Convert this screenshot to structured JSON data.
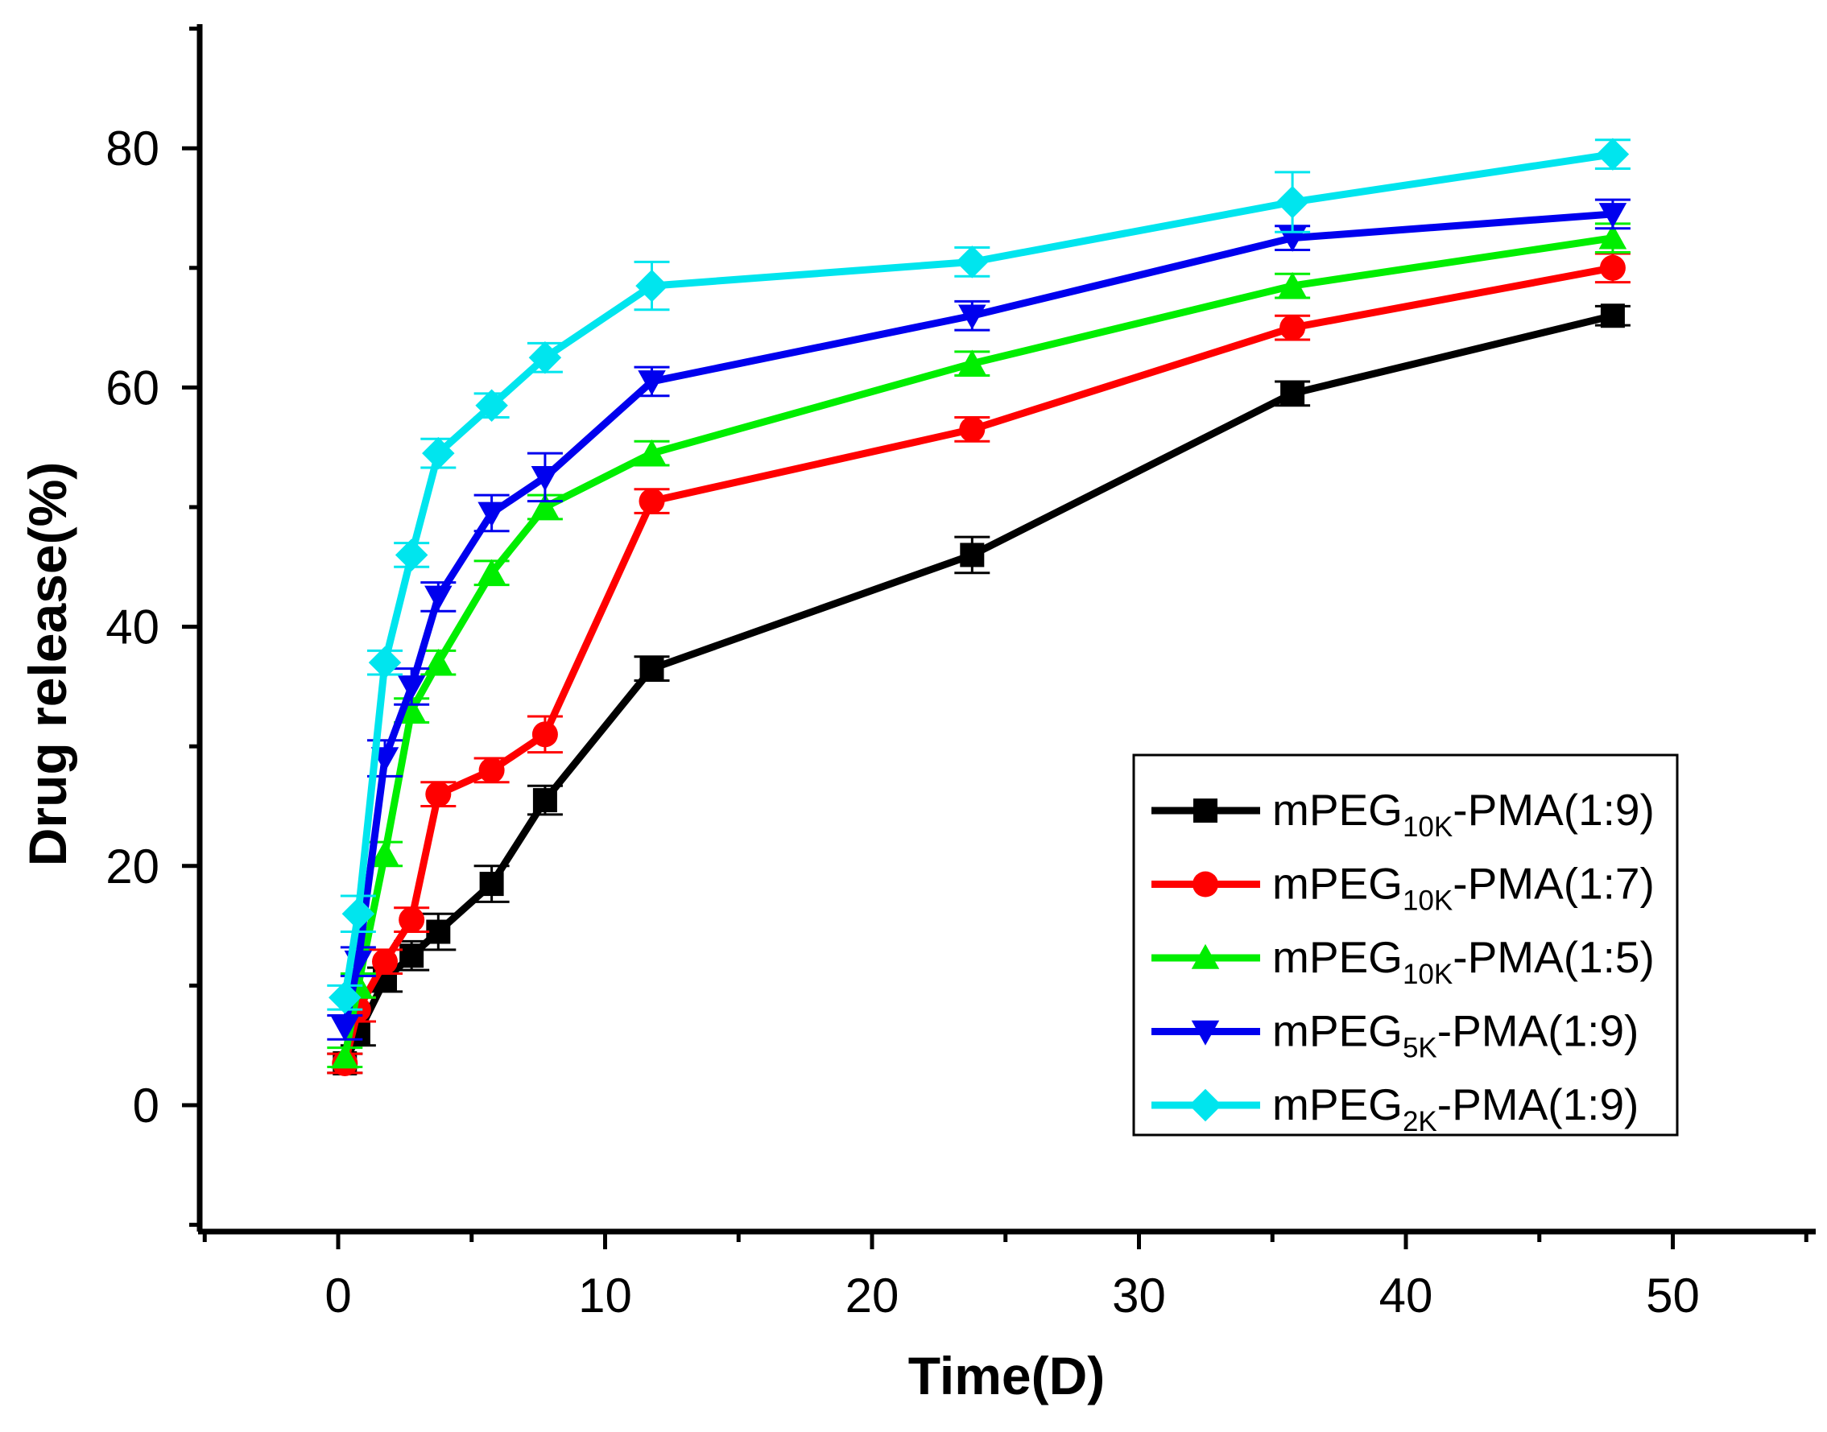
{
  "chart_data": {
    "type": "line",
    "title": "",
    "xlabel": "Time(D)",
    "ylabel": "Drug release(%)",
    "xlim": [
      -5,
      55
    ],
    "ylim": [
      -10,
      90
    ],
    "xticks": [
      "0",
      "10",
      "20",
      "30",
      "40",
      "50"
    ],
    "yticks": [
      "0",
      "20",
      "40",
      "60",
      "80"
    ],
    "grid": false,
    "legend_position": "lower-right",
    "x": [
      0.25,
      0.75,
      1.75,
      2.75,
      3.75,
      5.75,
      7.75,
      11.75,
      23.75,
      35.75,
      47.75
    ],
    "series": [
      {
        "name": "mPEG10K-PMA(1:9)",
        "legend_parts": {
          "prefix": "mPEG",
          "sub": "10K",
          "suffix": "-PMA(1:9)"
        },
        "color": "#000000",
        "marker": "square",
        "values": [
          3.5,
          6.0,
          10.5,
          12.5,
          14.5,
          18.5,
          25.5,
          36.5,
          46.0,
          59.5,
          66.0
        ],
        "errors": [
          0.8,
          1.0,
          1.0,
          1.2,
          1.5,
          1.5,
          1.2,
          1.0,
          1.5,
          1.0,
          0.8
        ]
      },
      {
        "name": "mPEG10K-PMA(1:7)",
        "legend_parts": {
          "prefix": "mPEG",
          "sub": "10K",
          "suffix": "-PMA(1:7)"
        },
        "color": "#ff0000",
        "marker": "circle",
        "values": [
          3.5,
          8.0,
          12.0,
          15.5,
          26.0,
          28.0,
          31.0,
          50.5,
          56.5,
          65.0,
          70.0
        ],
        "errors": [
          0.8,
          1.0,
          1.0,
          1.0,
          1.0,
          1.0,
          1.5,
          1.0,
          1.0,
          1.0,
          1.2
        ]
      },
      {
        "name": "mPEG10K-PMA(1:5)",
        "legend_parts": {
          "prefix": "mPEG",
          "sub": "10K",
          "suffix": "-PMA(1:5)"
        },
        "color": "#00ee00",
        "marker": "triangle-up",
        "values": [
          4.0,
          10.0,
          21.0,
          33.0,
          37.0,
          44.5,
          50.0,
          54.5,
          62.0,
          68.5,
          72.5
        ],
        "errors": [
          0.8,
          1.0,
          1.0,
          1.0,
          1.0,
          1.0,
          1.0,
          1.0,
          1.0,
          1.0,
          1.2
        ]
      },
      {
        "name": "mPEG5K-PMA(1:9)",
        "legend_parts": {
          "prefix": "mPEG",
          "sub": "5K",
          "suffix": "-PMA(1:9)"
        },
        "color": "#0000ee",
        "marker": "triangle-down",
        "values": [
          6.5,
          12.0,
          29.0,
          35.0,
          42.5,
          49.5,
          52.5,
          60.5,
          66.0,
          72.5,
          74.5
        ],
        "errors": [
          1.0,
          1.2,
          1.5,
          1.5,
          1.2,
          1.5,
          2.0,
          1.2,
          1.2,
          1.0,
          1.2
        ]
      },
      {
        "name": "mPEG2K-PMA(1:9)",
        "legend_parts": {
          "prefix": "mPEG",
          "sub": "2K",
          "suffix": "-PMA(1:9)"
        },
        "color": "#00e5ee",
        "marker": "diamond",
        "values": [
          9.0,
          16.0,
          37.0,
          46.0,
          54.5,
          58.5,
          62.5,
          68.5,
          70.5,
          75.5,
          79.5
        ],
        "errors": [
          1.0,
          1.5,
          1.0,
          1.0,
          1.2,
          1.0,
          1.2,
          2.0,
          1.2,
          2.5,
          1.2
        ]
      }
    ]
  }
}
